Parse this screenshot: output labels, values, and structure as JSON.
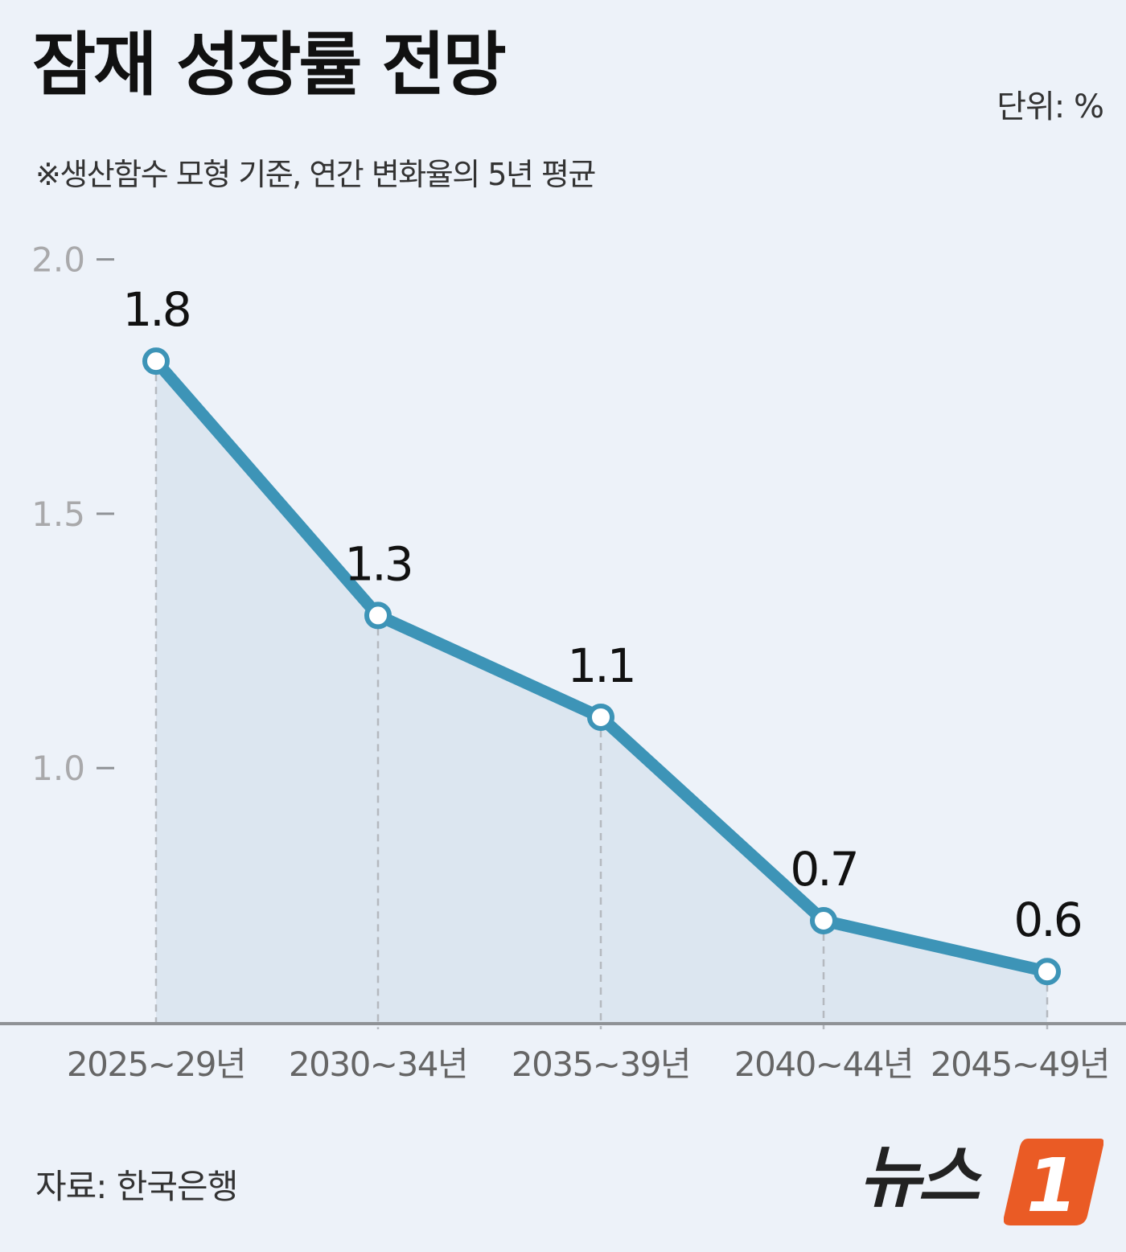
{
  "header": {
    "title": "잠재 성장률 전망",
    "unit": "단위: %",
    "subtitle": "※생산함수 모형 기준, 연간 변화율의 5년 평균"
  },
  "footer": {
    "source": "자료: 한국은행",
    "logo_text": "뉴스",
    "logo_mark": "1"
  },
  "colors": {
    "background": "#edf2f9",
    "line": "#3d94b7",
    "area": "#dce6f0",
    "logo_orange": "#ea5b25"
  },
  "chart_data": {
    "type": "line",
    "title": "잠재 성장률 전망",
    "xlabel": "",
    "ylabel": "단위: %",
    "categories": [
      "2025~29년",
      "2030~34년",
      "2035~39년",
      "2040~44년",
      "2045~49년"
    ],
    "values": [
      1.8,
      1.3,
      1.1,
      0.7,
      0.6
    ],
    "value_labels": [
      "1.8",
      "1.3",
      "1.1",
      "0.7",
      "0.6"
    ],
    "y_ticks": [
      {
        "value": 2.0,
        "label": "2.0"
      },
      {
        "value": 1.5,
        "label": "1.5"
      },
      {
        "value": 1.0,
        "label": "1.0"
      }
    ],
    "ylim": [
      0.5,
      2.0
    ],
    "area_fill": true,
    "grid": false
  }
}
